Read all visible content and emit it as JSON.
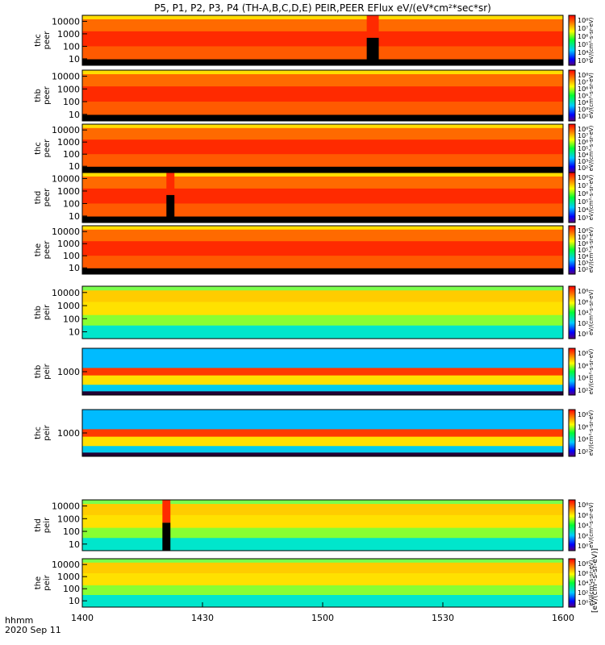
{
  "title": "P5, P1, P2, P3, P4 (TH-A,B,C,D,E) PEIR,PEER EFlux eV/(eV*cm²*sec*sr)",
  "time_label": "hhmm",
  "date_label": "2020 Sep 11",
  "colorbar_side_label": "[eV/(cm²-s-sr-eV)]",
  "chart_data": {
    "type": "heatmap",
    "x_axis": {
      "range": [
        "14:00",
        "16:00"
      ],
      "tick_labels": [
        "1400",
        "1430",
        "1500",
        "1530",
        "1600"
      ]
    },
    "colormap": "rainbow (purple-blue-cyan-green-yellow-red)",
    "panels": [
      {
        "probe": "thc",
        "product": "peer",
        "y_ticks": [
          "10000",
          "1000",
          "100",
          "10"
        ],
        "y_scale": "log",
        "cbar_ticks": [
          "10⁸",
          "10⁷",
          "10⁶",
          "10⁵",
          "10⁴",
          "10³"
        ],
        "cbar_label": "eV/(cm²-s-sr-eV)",
        "data_gap": {
          "start": "15:11",
          "end": "15:14"
        }
      },
      {
        "probe": "thb",
        "product": "peer",
        "y_ticks": [
          "10000",
          "1000",
          "100",
          "10"
        ],
        "y_scale": "log",
        "cbar_ticks": [
          "10⁸",
          "10⁷",
          "10⁶",
          "10⁵",
          "10⁴",
          "10³",
          "10²"
        ],
        "cbar_label": "eV/(cm²-s-sr-eV)"
      },
      {
        "probe": "thc",
        "product": "peer",
        "y_ticks": [
          "10000",
          "1000",
          "100",
          "10"
        ],
        "y_scale": "log",
        "cbar_ticks": [
          "10⁸",
          "10⁷",
          "10⁶",
          "10⁵",
          "10⁴",
          "10³",
          "10²"
        ],
        "cbar_label": "eV/(cm²-s-sr-eV)"
      },
      {
        "probe": "thd",
        "product": "peer",
        "y_ticks": [
          "10000",
          "1000",
          "100",
          "10"
        ],
        "y_scale": "log",
        "cbar_ticks": [
          "10⁸",
          "10⁷",
          "10⁶",
          "10⁵",
          "10⁴",
          "10³"
        ],
        "cbar_label": "eV/(cm²-s-sr-eV)",
        "data_gap": {
          "start": "14:21",
          "end": "14:23"
        }
      },
      {
        "probe": "the",
        "product": "peer",
        "y_ticks": [
          "10000",
          "1000",
          "100",
          "10"
        ],
        "y_scale": "log",
        "cbar_ticks": [
          "10⁸",
          "10⁷",
          "10⁶",
          "10⁵",
          "10⁴",
          "10³",
          "10²"
        ],
        "cbar_label": "eV/(cm²-s-sr-eV)"
      },
      {
        "probe": "thb",
        "product": "peir",
        "y_ticks": [
          "10000",
          "1000",
          "100",
          "10"
        ],
        "y_scale": "log",
        "cbar_ticks": [
          "10⁸",
          "10⁶",
          "10⁴",
          "10²",
          "10⁰"
        ],
        "cbar_label": "eV/(cm²-s-sr-eV)"
      },
      {
        "probe": "thb",
        "product": "peir",
        "y_ticks": [
          "1000"
        ],
        "y_scale": "log",
        "cbar_ticks": [
          "10⁸",
          "10⁶",
          "10⁴",
          "10²"
        ],
        "cbar_label": "eV/(cm²-s-sr-eV)"
      },
      {
        "probe": "thc",
        "product": "peir",
        "y_ticks": [
          "1000"
        ],
        "y_scale": "log",
        "cbar_ticks": [
          "10⁸",
          "10⁶",
          "10⁴",
          "10²"
        ],
        "cbar_label": "eV/(cm²-s-sr-eV)"
      },
      {
        "probe": "thd",
        "product": "peir",
        "y_ticks": [
          "10000",
          "1000",
          "100",
          "10"
        ],
        "y_scale": "log",
        "cbar_ticks": [
          "10⁸",
          "10⁶",
          "10⁴",
          "10²",
          "10⁰"
        ],
        "cbar_label": "eV/(cm²-s-sr-eV)",
        "data_gap": {
          "start": "14:20",
          "end": "14:22"
        }
      },
      {
        "probe": "the",
        "product": "peir",
        "y_ticks": [
          "10000",
          "1000",
          "100",
          "10"
        ],
        "y_scale": "log",
        "cbar_ticks": [
          "10⁸",
          "10⁶",
          "10⁴",
          "10²",
          "10⁰"
        ],
        "cbar_label": "eV/(cm²-s-sr-eV)"
      }
    ]
  }
}
